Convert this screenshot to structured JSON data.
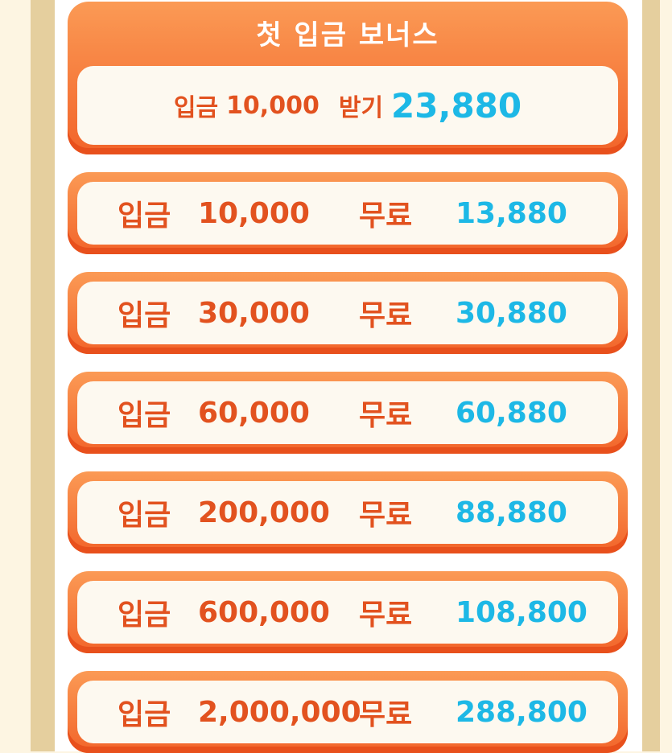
{
  "header": {
    "title": "첫 입금 보너스",
    "deposit_label": "입금",
    "deposit_amount": "10,000",
    "receive_label": "받기",
    "receive_amount": "23,880"
  },
  "rows": [
    {
      "deposit_label": "입금",
      "amount": "10,000",
      "free_label": "무료",
      "bonus": "13,880"
    },
    {
      "deposit_label": "입금",
      "amount": "30,000",
      "free_label": "무료",
      "bonus": "30,880"
    },
    {
      "deposit_label": "입금",
      "amount": "60,000",
      "free_label": "무료",
      "bonus": "60,880"
    },
    {
      "deposit_label": "입금",
      "amount": "200,000",
      "free_label": "무료",
      "bonus": "88,880"
    },
    {
      "deposit_label": "입금",
      "amount": "600,000",
      "free_label": "무료",
      "bonus": "108,800"
    },
    {
      "deposit_label": "입금",
      "amount": "2,000,000",
      "free_label": "무료",
      "bonus": "288,800"
    }
  ],
  "colors": {
    "accent": "#f2642a",
    "text_orange": "#e2521f",
    "text_blue": "#1db8e6"
  }
}
